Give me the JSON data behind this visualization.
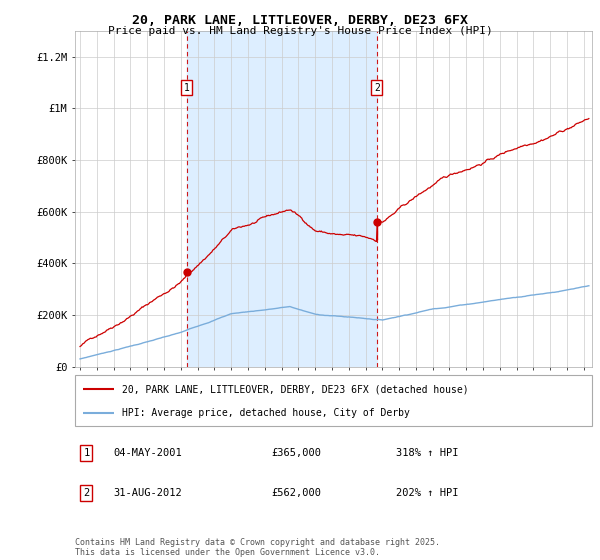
{
  "title_line1": "20, PARK LANE, LITTLEOVER, DERBY, DE23 6FX",
  "title_line2": "Price paid vs. HM Land Registry's House Price Index (HPI)",
  "ylabel_ticks": [
    "£0",
    "£200K",
    "£400K",
    "£600K",
    "£800K",
    "£1M",
    "£1.2M"
  ],
  "ytick_values": [
    0,
    200000,
    400000,
    600000,
    800000,
    1000000,
    1200000
  ],
  "ylim": [
    0,
    1300000
  ],
  "xlim_start": 1994.7,
  "xlim_end": 2025.5,
  "sale1_year": 2001.34,
  "sale1_price": 365000,
  "sale2_year": 2012.67,
  "sale2_price": 562000,
  "legend_line1": "20, PARK LANE, LITTLEOVER, DERBY, DE23 6FX (detached house)",
  "legend_line2": "HPI: Average price, detached house, City of Derby",
  "note1_date": "04-MAY-2001",
  "note1_price": "£365,000",
  "note1_hpi": "318% ↑ HPI",
  "note2_date": "31-AUG-2012",
  "note2_price": "£562,000",
  "note2_hpi": "202% ↑ HPI",
  "footer": "Contains HM Land Registry data © Crown copyright and database right 2025.\nThis data is licensed under the Open Government Licence v3.0.",
  "line_color_house": "#cc0000",
  "line_color_hpi": "#7aaddb",
  "shade_color": "#ddeeff",
  "dashed_vline_color": "#cc0000",
  "grid_color": "#cccccc",
  "spine_color": "#aaaaaa"
}
